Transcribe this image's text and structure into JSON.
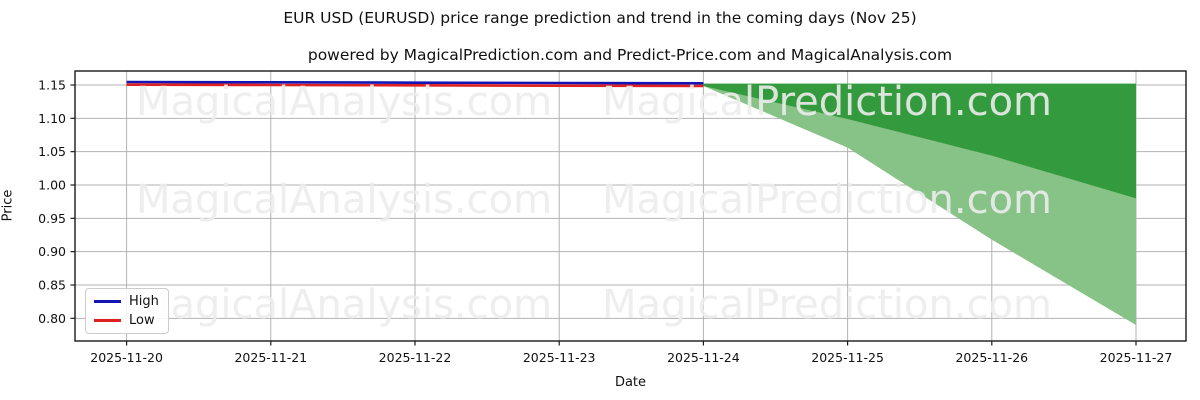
{
  "chart_data": {
    "type": "line",
    "title": "EUR USD (EURUSD) price range prediction and trend in the coming days (Nov 25)",
    "subtitle": "powered by MagicalPrediction.com and Predict-Price.com and MagicalAnalysis.com",
    "xlabel": "Date",
    "ylabel": "Price",
    "x_dates": [
      "2025-11-20",
      "2025-11-21",
      "2025-11-22",
      "2025-11-23",
      "2025-11-24",
      "2025-11-25",
      "2025-11-26",
      "2025-11-27"
    ],
    "y_tick_values": [
      0.8,
      0.85,
      0.9,
      0.95,
      1.0,
      1.05,
      1.1,
      1.15
    ],
    "y_tick_labels": [
      "0.80",
      "0.85",
      "0.90",
      "0.95",
      "1.00",
      "1.05",
      "1.10",
      "1.15"
    ],
    "ylim": [
      0.766,
      1.171
    ],
    "grid": true,
    "legend_position": "lower left",
    "series": [
      {
        "name": "High",
        "color": "#1414b4",
        "x": [
          "2025-11-20",
          "2025-11-21",
          "2025-11-22",
          "2025-11-23",
          "2025-11-24"
        ],
        "values": [
          1.1545,
          1.154,
          1.1535,
          1.153,
          1.1525
        ]
      },
      {
        "name": "Low",
        "color": "#dd2020",
        "x": [
          "2025-11-20",
          "2025-11-21",
          "2025-11-22",
          "2025-11-23",
          "2025-11-24"
        ],
        "values": [
          1.1505,
          1.15,
          1.1495,
          1.149,
          1.1485
        ]
      }
    ],
    "bands": [
      {
        "name": "prediction-range-outer",
        "color": "#87c287",
        "x": [
          "2025-11-24",
          "2025-11-25",
          "2025-11-26",
          "2025-11-27"
        ],
        "upper": [
          1.152,
          1.152,
          1.152,
          1.152
        ],
        "lower": [
          1.1485,
          1.056,
          0.918,
          0.79
        ]
      },
      {
        "name": "prediction-range-inner",
        "color": "#339b3d",
        "x": [
          "2025-11-24",
          "2025-11-25",
          "2025-11-26",
          "2025-11-27"
        ],
        "upper": [
          1.152,
          1.152,
          1.152,
          1.152
        ],
        "lower": [
          1.1485,
          1.099,
          1.044,
          0.98
        ]
      }
    ],
    "watermarks": {
      "left_text": "MagicalAnalysis.com",
      "right_text": "MagicalPrediction.com"
    },
    "colors": {
      "grid": "#b2b2b2",
      "spine": "#1a1a1a",
      "tick_text": "#111111",
      "watermark": "#ececec"
    }
  }
}
